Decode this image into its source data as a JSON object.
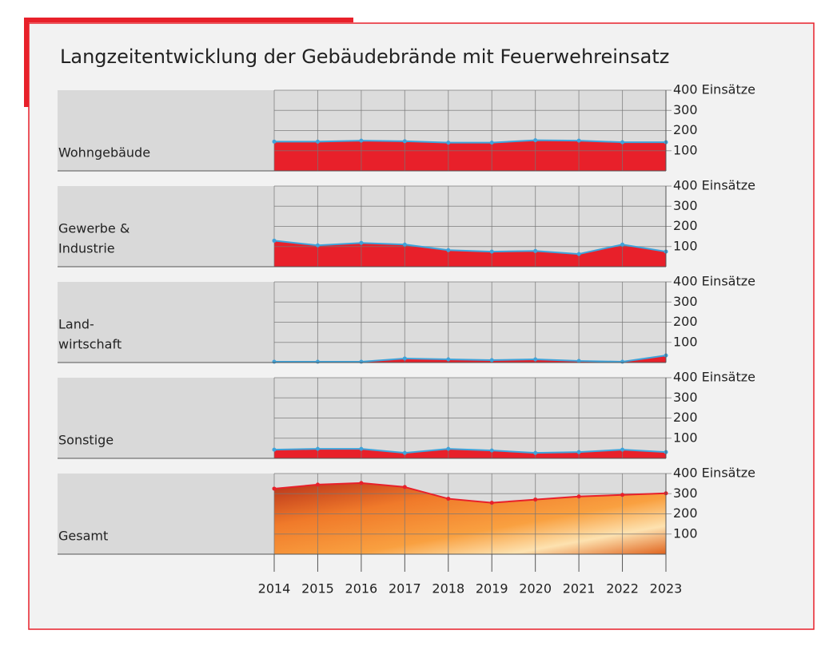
{
  "title": "Langzeitentwicklung der Gebäudebrände mit Feuerwehreinsatz",
  "chart_data": [
    {
      "type": "area",
      "label": [
        "Wohngebäude"
      ],
      "x": [
        2014,
        2015,
        2016,
        2017,
        2018,
        2019,
        2020,
        2021,
        2022,
        2023
      ],
      "values": [
        145,
        145,
        150,
        147,
        140,
        140,
        152,
        150,
        142,
        142
      ],
      "xlim": [
        2014,
        2023
      ],
      "ylim": [
        0,
        400
      ],
      "yticks": [
        100,
        200,
        300,
        {
          "value": 400,
          "label": "400 Einsätze"
        }
      ],
      "color": "#e8202a",
      "line_color": "#3fa3da",
      "grid": true
    },
    {
      "type": "area",
      "label": [
        "Gewerbe &",
        "Industrie"
      ],
      "x": [
        2014,
        2015,
        2016,
        2017,
        2018,
        2019,
        2020,
        2021,
        2022,
        2023
      ],
      "values": [
        129,
        106,
        118,
        110,
        82,
        75,
        78,
        63,
        110,
        75
      ],
      "xlim": [
        2014,
        2023
      ],
      "ylim": [
        0,
        400
      ],
      "yticks": [
        100,
        200,
        300,
        {
          "value": 400,
          "label": "400 Einsätze"
        }
      ],
      "color": "#e8202a",
      "line_color": "#3fa3da",
      "grid": true
    },
    {
      "type": "area",
      "label": [
        "Land-",
        "wirtschaft"
      ],
      "x": [
        2014,
        2015,
        2016,
        2017,
        2018,
        2019,
        2020,
        2021,
        2022,
        2023
      ],
      "values": [
        4,
        4,
        4,
        20,
        16,
        12,
        16,
        8,
        4,
        35
      ],
      "xlim": [
        2014,
        2023
      ],
      "ylim": [
        0,
        400
      ],
      "yticks": [
        100,
        200,
        300,
        {
          "value": 400,
          "label": "400 Einsätze"
        }
      ],
      "color": "#e8202a",
      "line_color": "#3fa3da",
      "grid": true
    },
    {
      "type": "area",
      "label": [
        "Sonstige"
      ],
      "x": [
        2014,
        2015,
        2016,
        2017,
        2018,
        2019,
        2020,
        2021,
        2022,
        2023
      ],
      "values": [
        43,
        47,
        47,
        27,
        47,
        39,
        27,
        31,
        43,
        31
      ],
      "xlim": [
        2014,
        2023
      ],
      "ylim": [
        0,
        400
      ],
      "yticks": [
        100,
        200,
        300,
        {
          "value": 400,
          "label": "400 Einsätze"
        }
      ],
      "color": "#e8202a",
      "line_color": "#3fa3da",
      "grid": true
    },
    {
      "type": "area",
      "label": [
        "Gesamt"
      ],
      "x": [
        2014,
        2015,
        2016,
        2017,
        2018,
        2019,
        2020,
        2021,
        2022,
        2023
      ],
      "values": [
        325,
        345,
        353,
        333,
        275,
        255,
        271,
        286,
        294,
        302
      ],
      "xlim": [
        2014,
        2023
      ],
      "ylim": [
        0,
        400
      ],
      "yticks": [
        100,
        200,
        300,
        {
          "value": 400,
          "label": "400 Einsätze"
        }
      ],
      "color": "url(#fire)",
      "line_color": "#e8202a",
      "grid": true,
      "show_xticks": true
    }
  ]
}
